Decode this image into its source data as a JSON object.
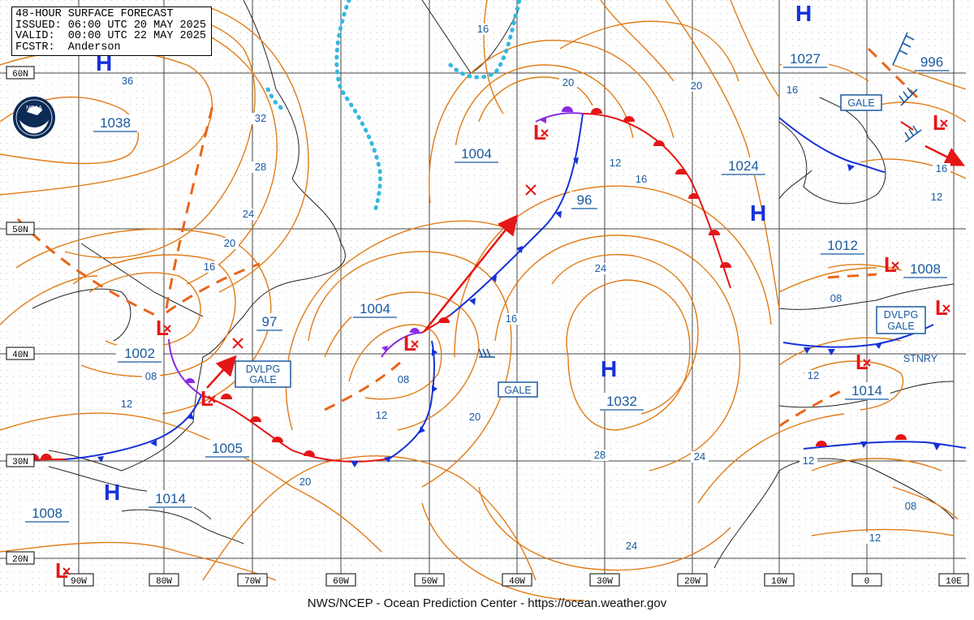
{
  "header": {
    "line1": "48-HOUR SURFACE FORECAST",
    "line2": "ISSUED: 06:00 UTC 20 MAY 2025",
    "line3": "VALID:  00:00 UTC 22 MAY 2025",
    "line4": "FCSTR:  Anderson"
  },
  "footer": "NWS/NCEP - Ocean Prediction Center - https://ocean.weather.gov",
  "colors": {
    "isobar": "#e07b16",
    "cold": "#1631d8",
    "warm": "#e51616",
    "occluded": "#8a2be2",
    "label": "#1a5aa0",
    "ice": "#35b8e0"
  },
  "lat_labels": [
    "60N",
    "50N",
    "40N",
    "30N",
    "20N"
  ],
  "lon_labels": [
    "90W",
    "80W",
    "70W",
    "60W",
    "50W",
    "40W",
    "30W",
    "20W",
    "10W",
    "0",
    "10E"
  ],
  "pressure_labels": {
    "h1": "1038",
    "l1": "1002",
    "s1": "1005",
    "h2": "1014",
    "h3": "1008",
    "l2": "1004",
    "l3": "1004",
    "l4": "96",
    "l5": "97",
    "h4": "1032",
    "h5": "1024",
    "h6": "1027",
    "l6": "996",
    "l7": "1012",
    "l8": "1008",
    "l9": "1014"
  },
  "isobar_labels": [
    "36",
    "32",
    "28",
    "24",
    "20",
    "16",
    "08",
    "12",
    "16",
    "08",
    "12",
    "16",
    "20",
    "24",
    "12",
    "16",
    "20",
    "28",
    "24",
    "20",
    "16",
    "08",
    "12",
    "24",
    "20",
    "16",
    "12",
    "08",
    "12",
    "12"
  ],
  "warnings": {
    "dvlpg_gale_w_1": "DVLPG",
    "dvlpg_gale_w_2": "GALE",
    "gale_mid": "GALE",
    "gale_ne": "GALE",
    "dvlpg_gale_e_1": "DVLPG",
    "dvlpg_gale_e_2": "GALE",
    "stnry": "STNRY"
  },
  "symbols": {
    "high": "H",
    "low": "L"
  }
}
